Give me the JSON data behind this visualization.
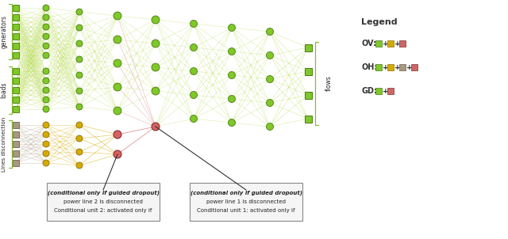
{
  "bg_color": "#ffffff",
  "green_node": "#7ec829",
  "green_sq": "#7ec829",
  "yellow_node": "#d4aa00",
  "gray_node": "#a89880",
  "gray_sq": "#a89880",
  "pink_node": "#d96060",
  "green_line": "#b0d840",
  "yellow_line": "#d4aa00",
  "gray_line": "#a89880",
  "red_line": "#c84040",
  "dark_line": "#333333",
  "legend_title": "Legend",
  "legend_ov": "OV:",
  "legend_oh": "OH:",
  "legend_gd": "GD:",
  "label_generators": "generators",
  "label_loads": "loads",
  "label_lines": "Lines disconnection",
  "label_flows": "flows",
  "ann1": "Conditional unit 2: activated only if\npower line 2 is disconnected\n(conditional only if guided dropout)",
  "ann2": "Conditional unit 1: activated only if\npower line 1 is disconnected\n(conditional only if guided dropout)",
  "ov_colors": [
    "#7ec829",
    "#d4aa00",
    "#cc6666"
  ],
  "oh_colors": [
    "#7ec829",
    "#d4aa00",
    "#a89880",
    "#cc6666"
  ],
  "gd_colors": [
    "#7ec829",
    "#cc6666"
  ]
}
